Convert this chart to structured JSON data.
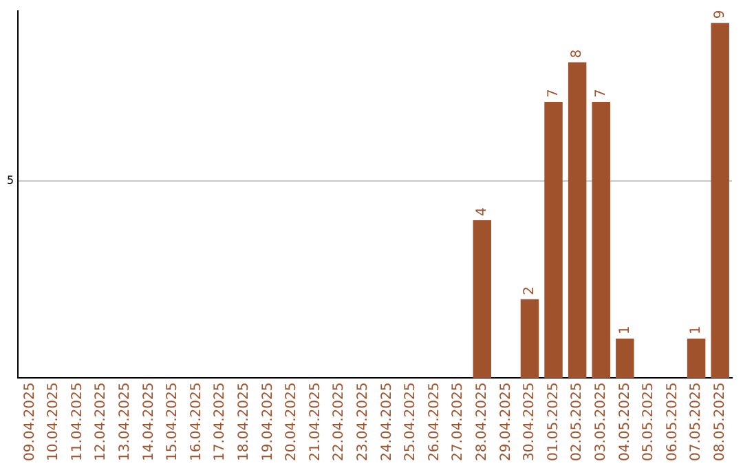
{
  "chart_data": {
    "type": "bar",
    "categories": [
      "09.04.2025",
      "10.04.2025",
      "11.04.2025",
      "12.04.2025",
      "13.04.2025",
      "14.04.2025",
      "15.04.2025",
      "16.04.2025",
      "17.04.2025",
      "18.04.2025",
      "19.04.2025",
      "20.04.2025",
      "21.04.2025",
      "22.04.2025",
      "23.04.2025",
      "24.04.2025",
      "25.04.2025",
      "26.04.2025",
      "27.04.2025",
      "28.04.2025",
      "29.04.2025",
      "30.04.2025",
      "01.05.2025",
      "02.05.2025",
      "03.05.2025",
      "04.05.2025",
      "05.05.2025",
      "06.05.2025",
      "07.05.2025",
      "08.05.2025"
    ],
    "series": [
      {
        "color": "#a0522d",
        "values": [
          null,
          null,
          null,
          null,
          null,
          null,
          null,
          null,
          null,
          null,
          null,
          null,
          null,
          null,
          null,
          null,
          null,
          null,
          null,
          4,
          null,
          2,
          7,
          8,
          7,
          1,
          null,
          null,
          1,
          9
        ]
      }
    ],
    "ylim": [
      0,
      9.3
    ],
    "yticks": [
      5
    ],
    "grid": "y",
    "legend": false,
    "data_labels": true
  }
}
